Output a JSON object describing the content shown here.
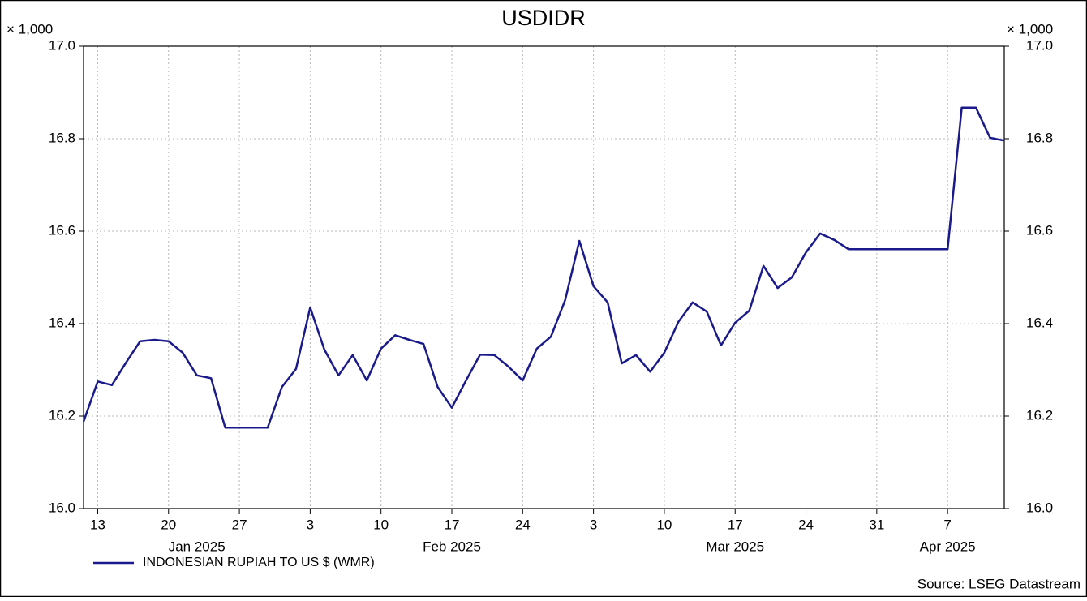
{
  "chart_data": {
    "type": "line",
    "title": "USDIDR",
    "ylabel": "× 1,000",
    "y2label": "× 1,000",
    "source": "Source: LSEG Datastream",
    "x": [
      "2025-01-10",
      "2025-01-13",
      "2025-01-14",
      "2025-01-15",
      "2025-01-16",
      "2025-01-17",
      "2025-01-20",
      "2025-01-21",
      "2025-01-22",
      "2025-01-23",
      "2025-01-24",
      "2025-01-27",
      "2025-01-28",
      "2025-01-29",
      "2025-01-30",
      "2025-01-31",
      "2025-02-03",
      "2025-02-04",
      "2025-02-05",
      "2025-02-06",
      "2025-02-07",
      "2025-02-10",
      "2025-02-11",
      "2025-02-12",
      "2025-02-13",
      "2025-02-14",
      "2025-02-17",
      "2025-02-18",
      "2025-02-19",
      "2025-02-20",
      "2025-02-21",
      "2025-02-24",
      "2025-02-25",
      "2025-02-26",
      "2025-02-27",
      "2025-02-28",
      "2025-03-03",
      "2025-03-04",
      "2025-03-05",
      "2025-03-06",
      "2025-03-07",
      "2025-03-10",
      "2025-03-11",
      "2025-03-12",
      "2025-03-13",
      "2025-03-14",
      "2025-03-17",
      "2025-03-18",
      "2025-03-19",
      "2025-03-20",
      "2025-03-21",
      "2025-03-24",
      "2025-03-25",
      "2025-03-26",
      "2025-03-27",
      "2025-03-28",
      "2025-03-31",
      "2025-04-01",
      "2025-04-02",
      "2025-04-03",
      "2025-04-04",
      "2025-04-07",
      "2025-04-08",
      "2025-04-09",
      "2025-04-10",
      "2025-04-11"
    ],
    "series": [
      {
        "name": "INDONESIAN RUPIAH TO US $ (WMR)",
        "color": "#1a1a8c",
        "values": [
          16.188,
          16.275,
          16.267,
          16.316,
          16.362,
          16.365,
          16.362,
          16.337,
          16.288,
          16.282,
          16.175,
          16.175,
          16.175,
          16.175,
          16.263,
          16.302,
          16.435,
          16.344,
          16.288,
          16.332,
          16.277,
          16.346,
          16.375,
          16.365,
          16.356,
          16.263,
          16.218,
          16.277,
          16.333,
          16.332,
          16.307,
          16.277,
          16.346,
          16.372,
          16.451,
          16.579,
          16.481,
          16.446,
          16.314,
          16.332,
          16.296,
          16.337,
          16.404,
          16.446,
          16.426,
          16.353,
          16.402,
          16.428,
          16.525,
          16.477,
          16.5,
          16.554,
          16.595,
          16.581,
          16.561,
          16.561,
          16.561,
          16.561,
          16.561,
          16.561,
          16.561,
          16.561,
          16.867,
          16.867,
          16.802,
          16.796
        ]
      }
    ],
    "xlim": [
      "2025-01-10",
      "2025-04-11"
    ],
    "xticks": [
      {
        "value": "2025-01-13",
        "label": "13"
      },
      {
        "value": "2025-01-20",
        "label": "20"
      },
      {
        "value": "2025-01-27",
        "label": "27"
      },
      {
        "value": "2025-02-03",
        "label": "3"
      },
      {
        "value": "2025-02-10",
        "label": "10"
      },
      {
        "value": "2025-02-17",
        "label": "17"
      },
      {
        "value": "2025-02-24",
        "label": "24"
      },
      {
        "value": "2025-03-03",
        "label": "3"
      },
      {
        "value": "2025-03-10",
        "label": "10"
      },
      {
        "value": "2025-03-17",
        "label": "17"
      },
      {
        "value": "2025-03-24",
        "label": "24"
      },
      {
        "value": "2025-03-31",
        "label": "31"
      },
      {
        "value": "2025-04-07",
        "label": "7"
      }
    ],
    "month_labels": [
      {
        "value": "2025-01-22",
        "label": "Jan 2025"
      },
      {
        "value": "2025-02-17",
        "label": "Feb 2025"
      },
      {
        "value": "2025-03-17",
        "label": "Mar 2025"
      },
      {
        "value": "2025-04-07",
        "label": "Apr 2025"
      }
    ],
    "ylim": [
      16,
      17
    ],
    "yticks": [
      {
        "value": 16,
        "label": "16.0"
      },
      16.2,
      16.4,
      16.6,
      16.8,
      {
        "value": 17,
        "label": "17.0"
      }
    ],
    "y2lim": [
      16,
      17
    ],
    "y2ticks": [
      {
        "value": 16,
        "label": "16.0"
      },
      16.2,
      16.4,
      16.6,
      16.8,
      {
        "value": 17,
        "label": "17.0"
      }
    ],
    "grid": true,
    "legend": "bottom-left"
  }
}
